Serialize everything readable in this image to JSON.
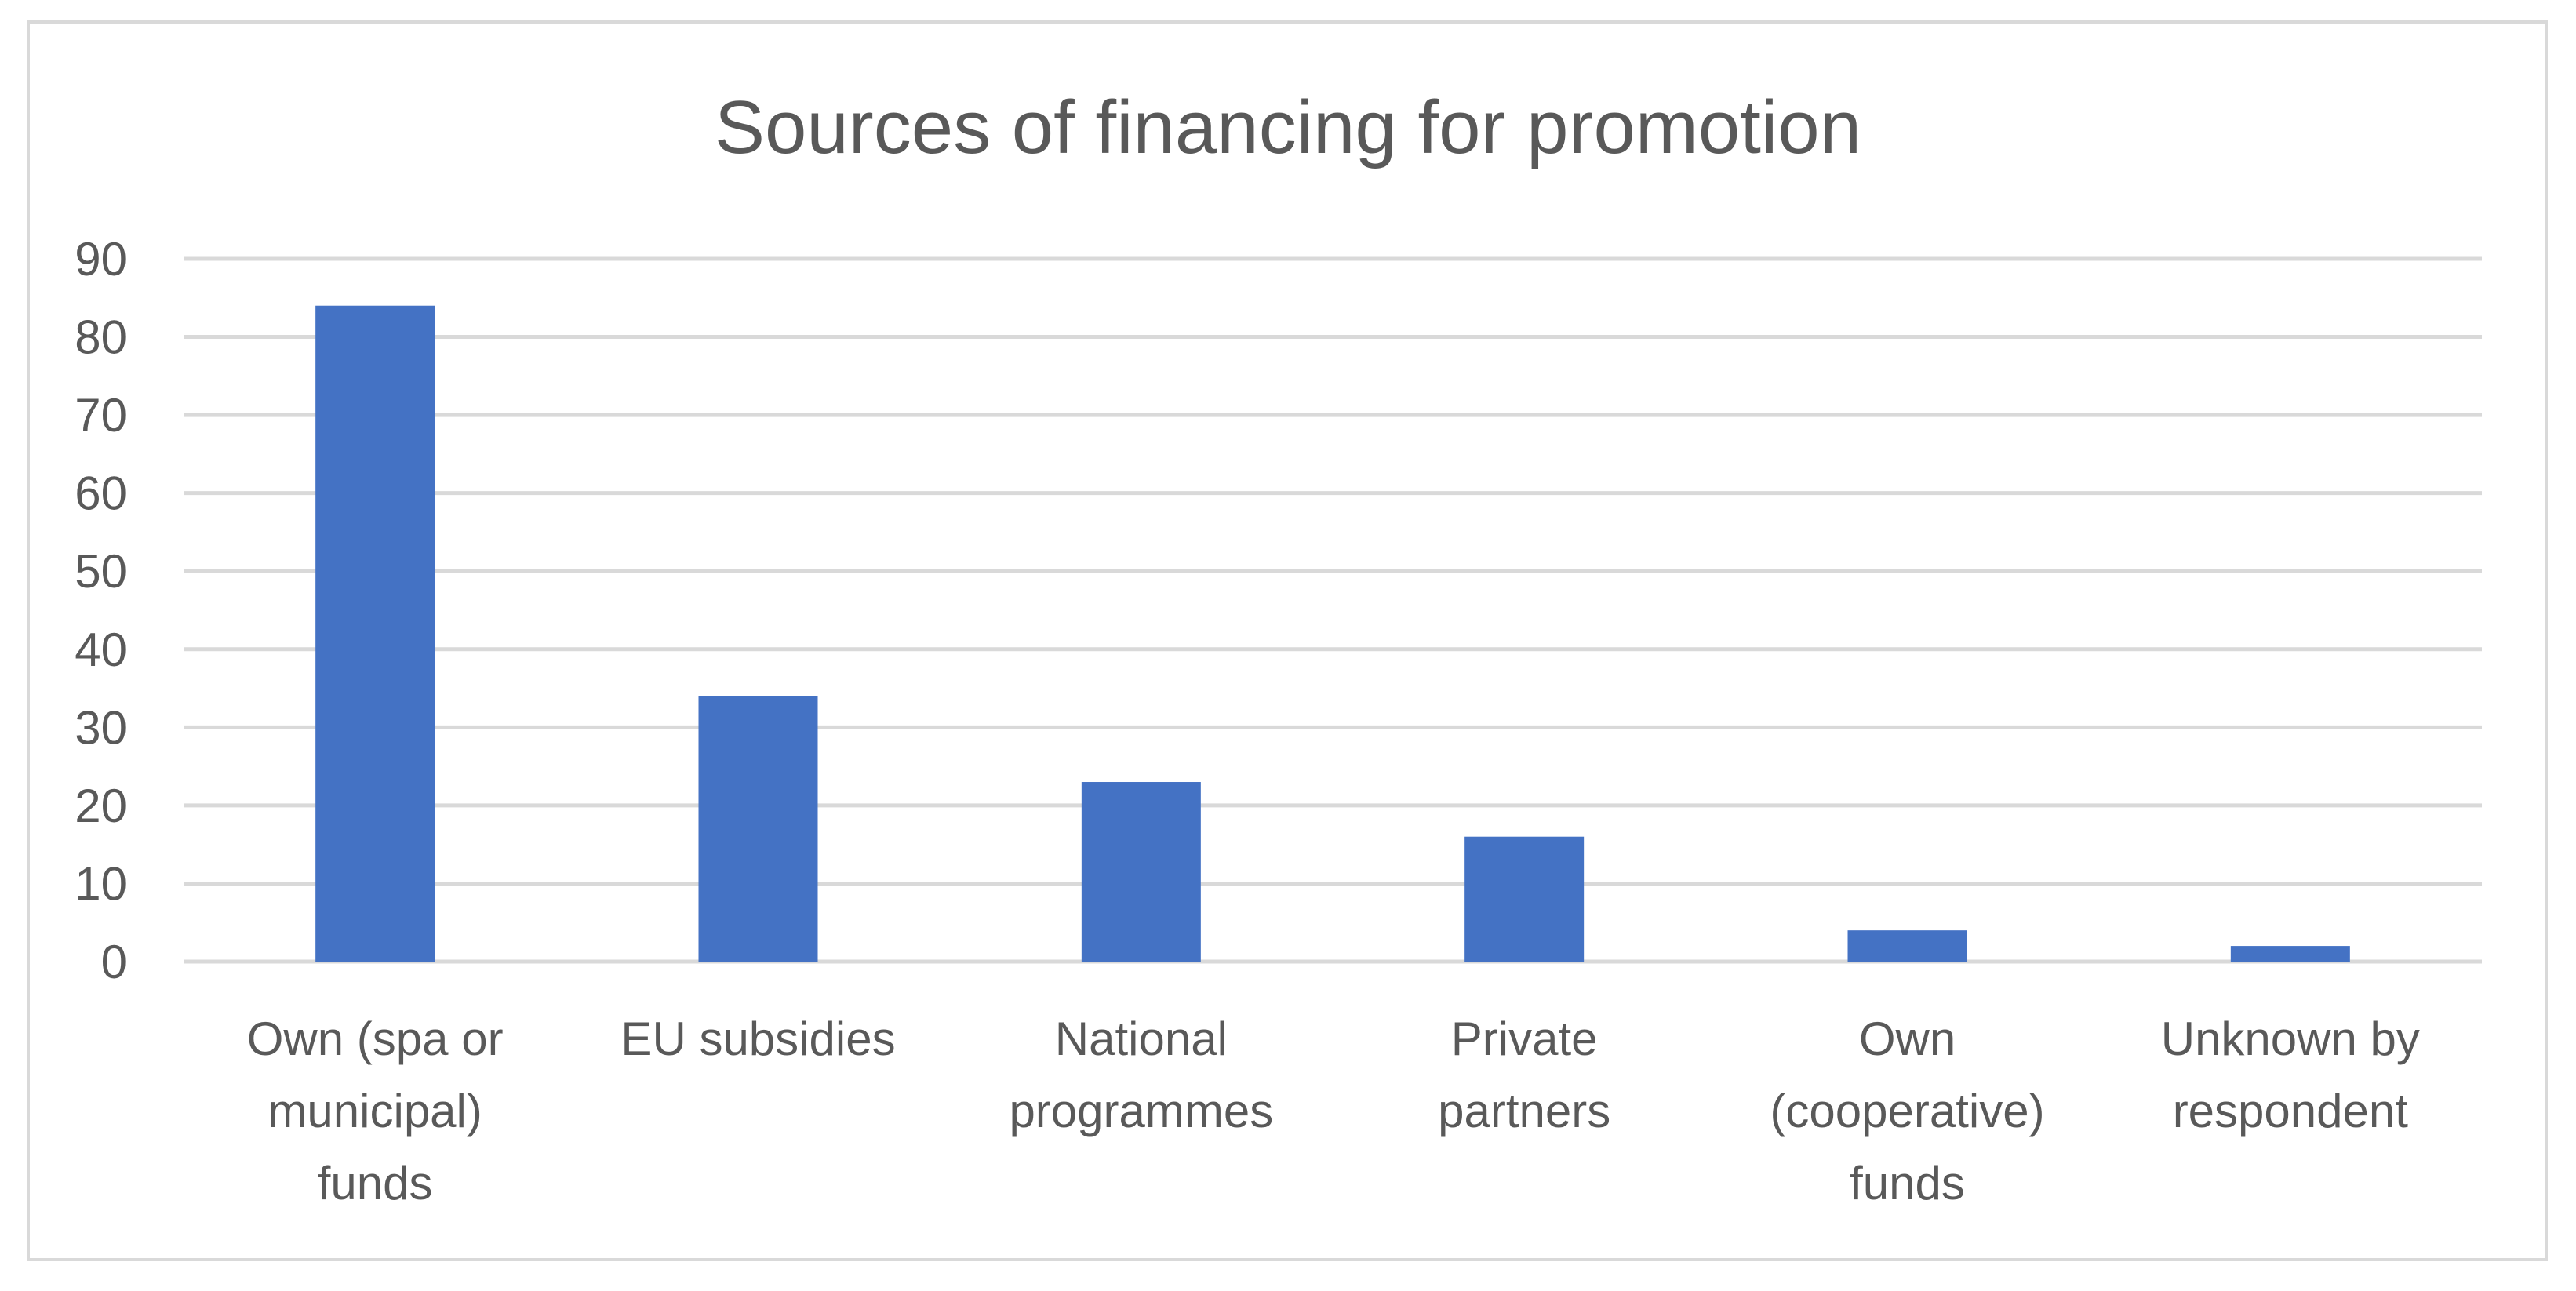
{
  "chart_data": {
    "type": "bar",
    "title": "Sources of financing for promotion",
    "xlabel": "",
    "ylabel": "",
    "categories": [
      [
        "Own (spa or",
        "municipal)",
        "funds"
      ],
      [
        "EU subsidies"
      ],
      [
        "National",
        "programmes"
      ],
      [
        "Private",
        "partners"
      ],
      [
        "Own",
        "(cooperative)",
        "funds"
      ],
      [
        "Unknown by",
        "respondent"
      ]
    ],
    "values": [
      84,
      34,
      23,
      16,
      4,
      2
    ],
    "ylim": [
      0,
      90
    ],
    "yticks": [
      0,
      10,
      20,
      30,
      40,
      50,
      60,
      70,
      80,
      90
    ],
    "grid": true,
    "legend": "none",
    "colors": {
      "bar": "#4472c4",
      "grid": "#d9d9d9",
      "text": "#595959",
      "border": "#d9d9d9"
    }
  }
}
